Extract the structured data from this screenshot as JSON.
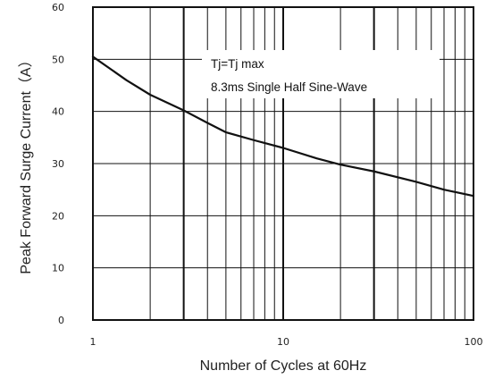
{
  "chart_data": {
    "type": "line",
    "title": "",
    "xlabel": "Number of Cycles at 60Hz",
    "ylabel": "Peak Forward Surge Current（A）",
    "x_scale": "log",
    "xlim": [
      1,
      100
    ],
    "ylim": [
      0,
      60
    ],
    "x_ticks": [
      1,
      10,
      100
    ],
    "x_tick_labels": [
      "1",
      "10",
      "100"
    ],
    "y_ticks": [
      0,
      10,
      20,
      30,
      40,
      50,
      60
    ],
    "y_tick_labels": [
      "0",
      "10",
      "20",
      "30",
      "40",
      "50",
      "60"
    ],
    "grid": true,
    "annotations": [
      "Tj=Tj max",
      "8.3ms Single Half Sine-Wave"
    ],
    "series": [
      {
        "x": [
          1,
          1.5,
          2,
          3,
          4,
          5,
          7,
          10,
          15,
          20,
          30,
          50,
          70,
          100
        ],
        "y": [
          50.5,
          46,
          43.2,
          40.2,
          37.8,
          36,
          34.5,
          33,
          31,
          29.8,
          28.5,
          26.5,
          25,
          23.8
        ]
      }
    ],
    "colors": {
      "line": "#111111",
      "grid": "#111111",
      "background": "#ffffff"
    }
  }
}
